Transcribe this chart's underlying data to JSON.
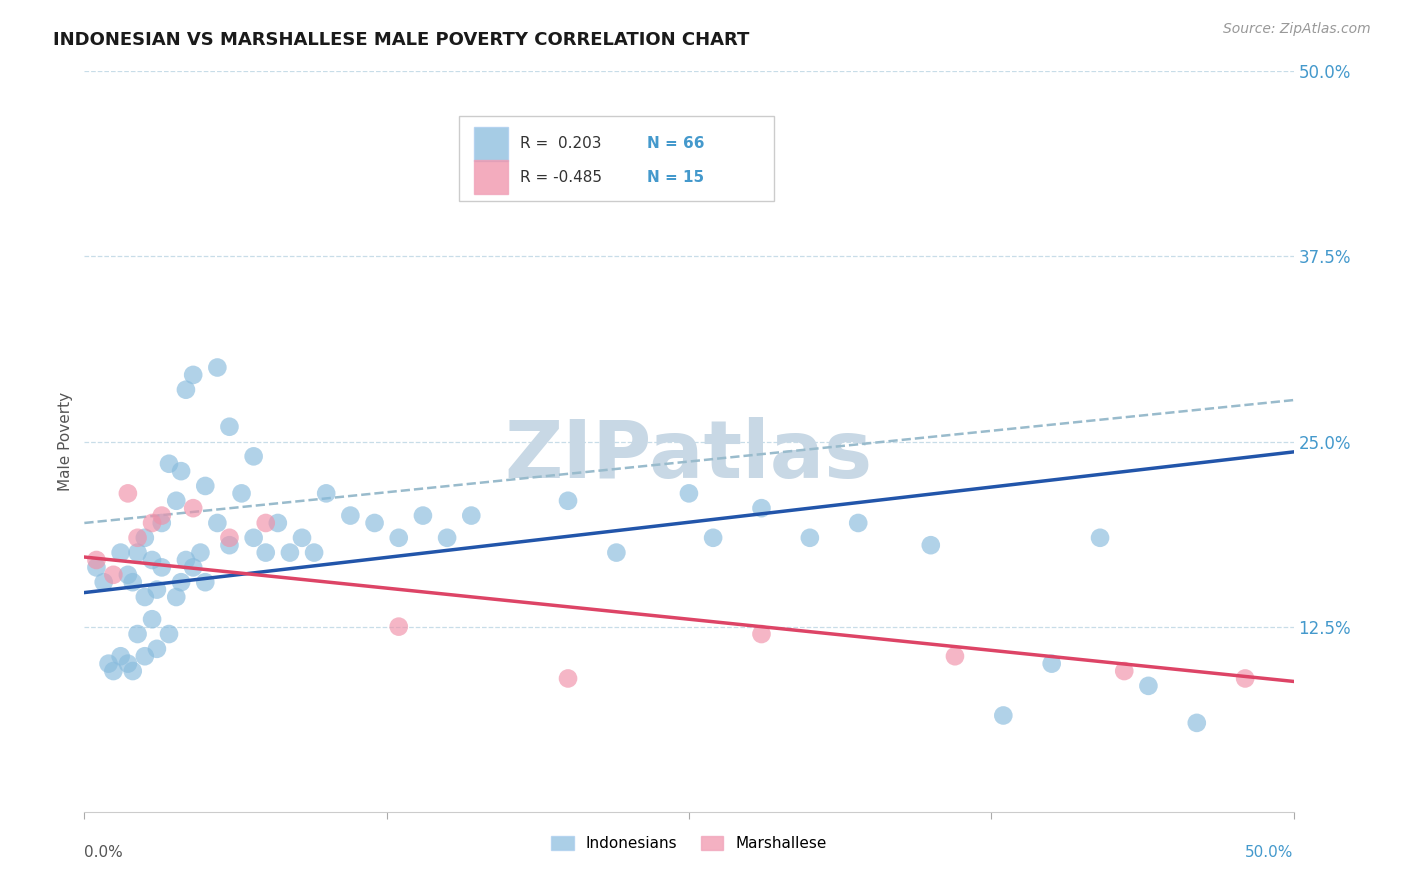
{
  "title": "INDONESIAN VS MARSHALLESE MALE POVERTY CORRELATION CHART",
  "source": "Source: ZipAtlas.com",
  "ylabel": "Male Poverty",
  "xlim": [
    0.0,
    0.5
  ],
  "ylim": [
    0.0,
    0.5
  ],
  "yticks": [
    0.0,
    0.125,
    0.25,
    0.375,
    0.5
  ],
  "ytick_labels": [
    "",
    "12.5%",
    "25.0%",
    "37.5%",
    "50.0%"
  ],
  "indonesian_color": "#88bbdd",
  "indonesian_edge": "#88bbdd",
  "marshallese_color": "#f090a8",
  "marshallese_edge": "#f090a8",
  "blue_line_color": "#2255aa",
  "pink_line_color": "#dd4466",
  "dashed_line_color": "#99bbcc",
  "background_color": "#ffffff",
  "grid_color": "#c8dde8",
  "watermark_color": "#c8d8e5",
  "blue_line_x": [
    0.0,
    0.5
  ],
  "blue_line_y": [
    0.148,
    0.243
  ],
  "dashed_line_x": [
    0.0,
    0.5
  ],
  "dashed_line_y": [
    0.195,
    0.278
  ],
  "pink_line_x": [
    0.0,
    0.5
  ],
  "pink_line_y": [
    0.172,
    0.088
  ],
  "indonesian_x": [
    0.005,
    0.008,
    0.01,
    0.012,
    0.015,
    0.015,
    0.018,
    0.018,
    0.02,
    0.02,
    0.022,
    0.022,
    0.025,
    0.025,
    0.025,
    0.028,
    0.028,
    0.03,
    0.03,
    0.032,
    0.032,
    0.035,
    0.035,
    0.038,
    0.038,
    0.04,
    0.04,
    0.042,
    0.042,
    0.045,
    0.045,
    0.048,
    0.05,
    0.05,
    0.055,
    0.055,
    0.06,
    0.06,
    0.065,
    0.07,
    0.07,
    0.075,
    0.08,
    0.085,
    0.09,
    0.095,
    0.1,
    0.11,
    0.12,
    0.13,
    0.14,
    0.15,
    0.16,
    0.2,
    0.22,
    0.25,
    0.26,
    0.28,
    0.3,
    0.32,
    0.35,
    0.38,
    0.4,
    0.42,
    0.44,
    0.46
  ],
  "indonesian_y": [
    0.165,
    0.155,
    0.1,
    0.095,
    0.105,
    0.175,
    0.1,
    0.16,
    0.095,
    0.155,
    0.175,
    0.12,
    0.105,
    0.145,
    0.185,
    0.13,
    0.17,
    0.11,
    0.15,
    0.165,
    0.195,
    0.12,
    0.235,
    0.145,
    0.21,
    0.155,
    0.23,
    0.17,
    0.285,
    0.165,
    0.295,
    0.175,
    0.155,
    0.22,
    0.195,
    0.3,
    0.18,
    0.26,
    0.215,
    0.185,
    0.24,
    0.175,
    0.195,
    0.175,
    0.185,
    0.175,
    0.215,
    0.2,
    0.195,
    0.185,
    0.2,
    0.185,
    0.2,
    0.21,
    0.175,
    0.215,
    0.185,
    0.205,
    0.185,
    0.195,
    0.18,
    0.065,
    0.1,
    0.185,
    0.085,
    0.06
  ],
  "marshallese_x": [
    0.005,
    0.012,
    0.018,
    0.022,
    0.028,
    0.032,
    0.045,
    0.06,
    0.075,
    0.13,
    0.2,
    0.28,
    0.36,
    0.43,
    0.48
  ],
  "marshallese_y": [
    0.17,
    0.16,
    0.215,
    0.185,
    0.195,
    0.2,
    0.205,
    0.185,
    0.195,
    0.125,
    0.09,
    0.12,
    0.105,
    0.095,
    0.09
  ]
}
